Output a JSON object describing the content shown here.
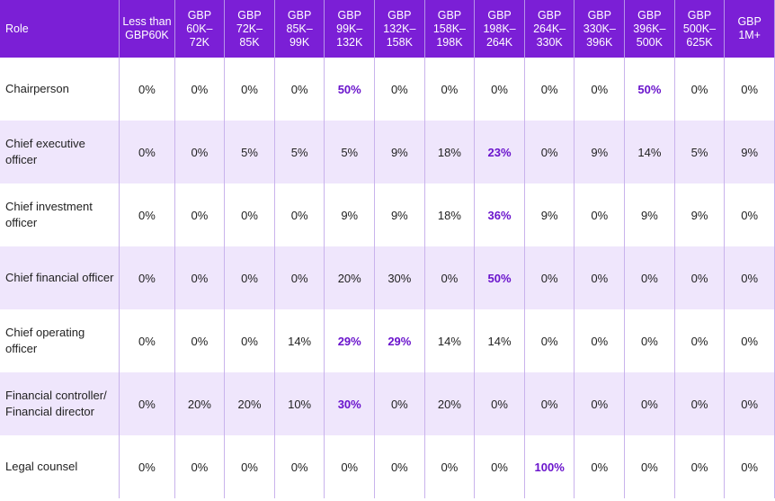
{
  "header": [
    "Role",
    "Less than\nGBP60K",
    "GBP\n60K–\n72K",
    "GBP\n72K–\n85K",
    "GBP\n85K–\n99K",
    "GBP\n99K–\n132K",
    "GBP\n132K–\n158K",
    "GBP\n158K–\n198K",
    "GBP\n198K–\n264K",
    "GBP\n264K–\n330K",
    "GBP\n330K–\n396K",
    "GBP\n396K–\n500K",
    "GBP\n500K–\n625K",
    "GBP\n1M+"
  ],
  "rows": [
    {
      "role": "Chairperson",
      "values": [
        "0%",
        "0%",
        "0%",
        "0%",
        "50%",
        "0%",
        "0%",
        "0%",
        "0%",
        "0%",
        "50%",
        "0%",
        "0%"
      ],
      "highlight": [
        4,
        10
      ]
    },
    {
      "role": "Chief executive officer",
      "values": [
        "0%",
        "0%",
        "5%",
        "5%",
        "5%",
        "9%",
        "18%",
        "23%",
        "0%",
        "9%",
        "14%",
        "5%",
        "9%"
      ],
      "highlight": [
        7
      ]
    },
    {
      "role": "Chief investment officer",
      "values": [
        "0%",
        "0%",
        "0%",
        "0%",
        "9%",
        "9%",
        "18%",
        "36%",
        "9%",
        "0%",
        "9%",
        "9%",
        "0%"
      ],
      "highlight": [
        7
      ]
    },
    {
      "role": "Chief financial officer",
      "values": [
        "0%",
        "0%",
        "0%",
        "0%",
        "20%",
        "30%",
        "0%",
        "50%",
        "0%",
        "0%",
        "0%",
        "0%",
        "0%"
      ],
      "highlight": [
        7
      ]
    },
    {
      "role": "Chief operating officer",
      "values": [
        "0%",
        "0%",
        "0%",
        "14%",
        "29%",
        "29%",
        "14%",
        "14%",
        "0%",
        "0%",
        "0%",
        "0%",
        "0%"
      ],
      "highlight": [
        4,
        5
      ]
    },
    {
      "role": "Financial controller/ Financial director",
      "values": [
        "0%",
        "20%",
        "20%",
        "10%",
        "30%",
        "0%",
        "20%",
        "0%",
        "0%",
        "0%",
        "0%",
        "0%",
        "0%"
      ],
      "highlight": [
        4
      ]
    },
    {
      "role": "Legal counsel",
      "values": [
        "0%",
        "0%",
        "0%",
        "0%",
        "0%",
        "0%",
        "0%",
        "0%",
        "100%",
        "0%",
        "0%",
        "0%",
        "0%"
      ],
      "highlight": [
        8
      ]
    }
  ],
  "colors": {
    "header_bg": "#7b1fd6",
    "highlight_text": "#6a14cc",
    "stripe_bg": "#efe6fc"
  }
}
